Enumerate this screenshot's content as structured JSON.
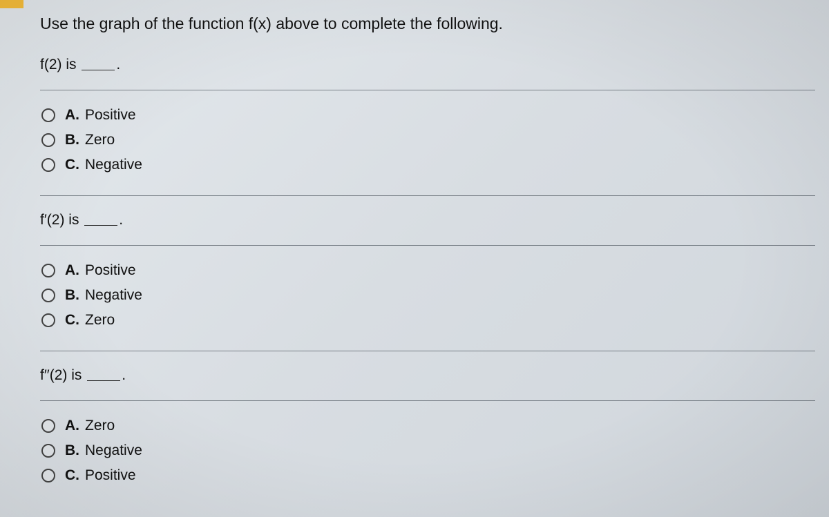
{
  "colors": {
    "background": "#dfe4e8",
    "text": "#111111",
    "divider": "rgba(20,30,40,0.5)",
    "accent": "#f6bd3a",
    "radio_border": "#444444"
  },
  "instruction": "Use the graph of the function f(x) above to complete the following.",
  "questions": [
    {
      "stem_prefix": "f(2) is ",
      "stem_suffix": ".",
      "options": [
        {
          "letter": "A.",
          "label": "Positive"
        },
        {
          "letter": "B.",
          "label": "Zero"
        },
        {
          "letter": "C.",
          "label": "Negative"
        }
      ]
    },
    {
      "stem_prefix": "f′(2) is ",
      "stem_suffix": ".",
      "options": [
        {
          "letter": "A.",
          "label": "Positive"
        },
        {
          "letter": "B.",
          "label": "Negative"
        },
        {
          "letter": "C.",
          "label": "Zero"
        }
      ]
    },
    {
      "stem_prefix": "f′′(2) is ",
      "stem_suffix": ".",
      "options": [
        {
          "letter": "A.",
          "label": "Zero"
        },
        {
          "letter": "B.",
          "label": "Negative"
        },
        {
          "letter": "C.",
          "label": "Positive"
        }
      ]
    }
  ]
}
